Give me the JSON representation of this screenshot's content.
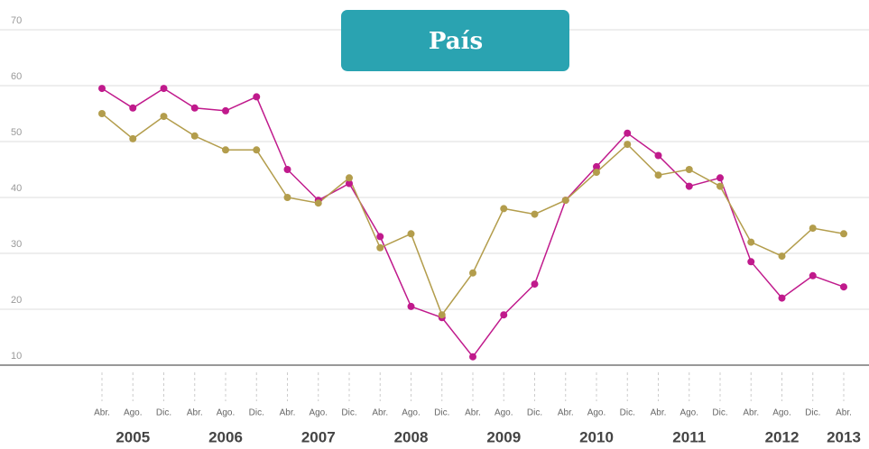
{
  "chart_data": {
    "type": "line",
    "title": "País",
    "categories": [
      "Abr.",
      "Ago.",
      "Dic.",
      "Abr.",
      "Ago.",
      "Dic.",
      "Abr.",
      "Ago.",
      "Dic.",
      "Abr.",
      "Ago.",
      "Dic.",
      "Abr.",
      "Ago.",
      "Dic.",
      "Abr.",
      "Ago.",
      "Dic.",
      "Abr.",
      "Ago.",
      "Dic.",
      "Abr.",
      "Ago.",
      "Dic.",
      "Abr."
    ],
    "years": [
      "2005",
      "2006",
      "2007",
      "2008",
      "2009",
      "2010",
      "2011",
      "2012",
      "2013"
    ],
    "series": [
      {
        "color": "#c01a8c",
        "values": [
          59.5,
          56,
          59.5,
          56,
          55.5,
          58,
          45,
          39.5,
          42.5,
          33,
          20.5,
          18.5,
          11.5,
          19,
          24.5,
          39.5,
          45.5,
          51.5,
          47.5,
          42,
          43.5,
          28.5,
          22,
          26,
          24
        ]
      },
      {
        "color": "#b39d4c",
        "values": [
          55,
          50.5,
          54.5,
          51,
          48.5,
          48.5,
          40,
          39,
          43.5,
          31,
          33.5,
          19,
          26.5,
          38,
          37,
          39.5,
          44.5,
          49.5,
          44,
          45,
          42,
          32,
          29.5,
          34.5,
          33.5
        ]
      }
    ],
    "ylim": [
      10,
      70
    ],
    "yticks": [
      10,
      20,
      30,
      40,
      50,
      60,
      70
    ],
    "grid": true
  }
}
